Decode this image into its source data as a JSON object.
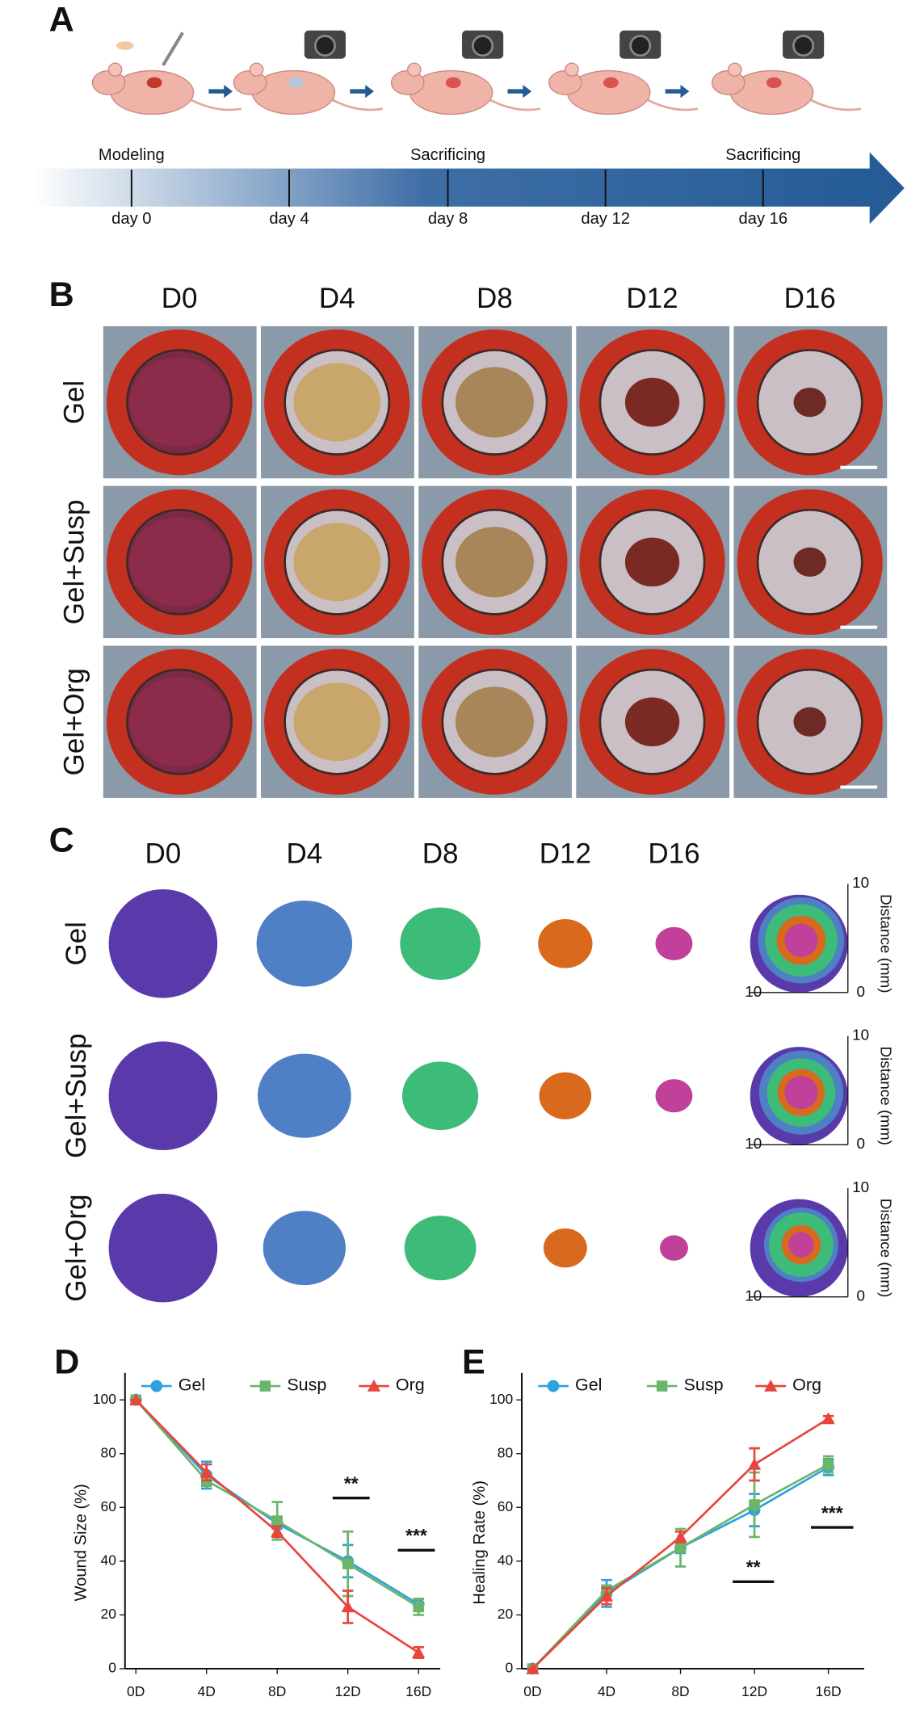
{
  "panels": {
    "A": {
      "letter": "A",
      "stages": [
        "Modeling",
        "Sacrificing",
        "Sacrificing"
      ],
      "days": [
        "day 0",
        "day 4",
        "day 8",
        "day 12",
        "day 16"
      ]
    },
    "B": {
      "letter": "B",
      "columns": [
        "D0",
        "D4",
        "D8",
        "D12",
        "D16"
      ],
      "rows": [
        "Gel",
        "Gel+Susp",
        "Gel+Org"
      ]
    },
    "C": {
      "letter": "C",
      "columns": [
        "D0",
        "D4",
        "D8",
        "D12",
        "D16"
      ],
      "rows": [
        "Gel",
        "Gel+Susp",
        "Gel+Org"
      ],
      "map_axis_label": "Distance (mm)",
      "map_ticks": [
        10,
        0,
        10
      ]
    }
  },
  "chart_data": [
    {
      "type": "line",
      "panel": "D",
      "y_label": "Wound Size (%)",
      "categories": [
        "0D",
        "4D",
        "8D",
        "12D",
        "16D"
      ],
      "ylim": [
        0,
        110
      ],
      "yticks": [
        0,
        20,
        40,
        60,
        80,
        100
      ],
      "legend": "top",
      "series": [
        {
          "name": "Gel",
          "color": "#2ea1e0",
          "marker": "circle",
          "values": [
            100,
            72,
            54,
            40,
            24
          ],
          "errors": [
            0,
            5,
            2,
            6,
            2
          ]
        },
        {
          "name": "Susp",
          "color": "#6ab56a",
          "marker": "square",
          "values": [
            100,
            70,
            55,
            39,
            23
          ],
          "errors": [
            0,
            2,
            7,
            12,
            3
          ]
        },
        {
          "name": "Org",
          "color": "#e8453c",
          "marker": "triangle",
          "values": [
            100,
            73,
            51,
            23,
            6
          ],
          "errors": [
            0,
            3,
            2,
            6,
            2
          ]
        }
      ],
      "annotations": [
        "**",
        "***"
      ]
    },
    {
      "type": "line",
      "panel": "E",
      "y_label": "Healing Rate (%)",
      "categories": [
        "0D",
        "4D",
        "8D",
        "12D",
        "16D"
      ],
      "ylim": [
        0,
        110
      ],
      "yticks": [
        0,
        20,
        40,
        60,
        80,
        100
      ],
      "legend": "top",
      "series": [
        {
          "name": "Gel",
          "color": "#2ea1e0",
          "marker": "circle",
          "values": [
            0,
            28,
            45,
            59,
            75
          ],
          "errors": [
            0,
            5,
            2,
            6,
            3
          ]
        },
        {
          "name": "Susp",
          "color": "#6ab56a",
          "marker": "square",
          "values": [
            0,
            29,
            45,
            61,
            76
          ],
          "errors": [
            0,
            2,
            7,
            12,
            3
          ]
        },
        {
          "name": "Org",
          "color": "#e8453c",
          "marker": "triangle",
          "values": [
            0,
            27,
            49,
            76,
            93
          ],
          "errors": [
            0,
            3,
            2,
            6,
            1
          ]
        }
      ],
      "annotations": [
        "**",
        "***"
      ]
    }
  ]
}
